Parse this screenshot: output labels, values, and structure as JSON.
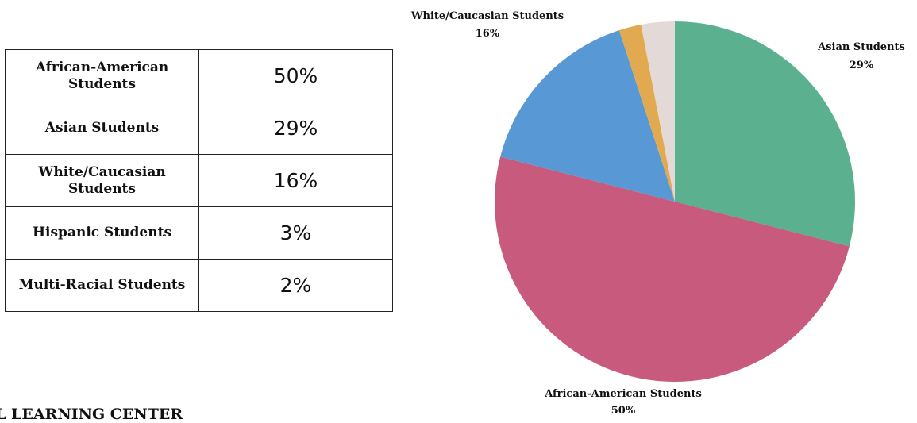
{
  "table": {
    "rows": [
      {
        "label": "African-American Students",
        "value": "50%"
      },
      {
        "label": "Asian Students",
        "value": "29%"
      },
      {
        "label": "White/Caucasian Students",
        "value": "16%"
      },
      {
        "label": "Hispanic Students",
        "value": "3%"
      },
      {
        "label": "Multi-Racial Students",
        "value": "2%"
      }
    ]
  },
  "footer_text": "L LEARNING CENTER",
  "chart_data": {
    "type": "pie",
    "slices": [
      {
        "label": "Asian Students",
        "value": 29,
        "display": "29%",
        "color": "#5bb08f",
        "show_label": true
      },
      {
        "label": "African-American Students",
        "value": 50,
        "display": "50%",
        "color": "#c75a7d",
        "show_label": true
      },
      {
        "label": "White/Caucasian Students",
        "value": 16,
        "display": "16%",
        "color": "#5898d4",
        "show_label": true
      },
      {
        "label": "Multi-Racial Students",
        "value": 2,
        "display": "2%",
        "color": "#e2aa50",
        "show_label": false
      },
      {
        "label": "Hispanic Students",
        "value": 3,
        "display": "3%",
        "color": "#e3d9d6",
        "show_label": false
      }
    ],
    "start": "12 o'clock",
    "direction": "clockwise"
  }
}
